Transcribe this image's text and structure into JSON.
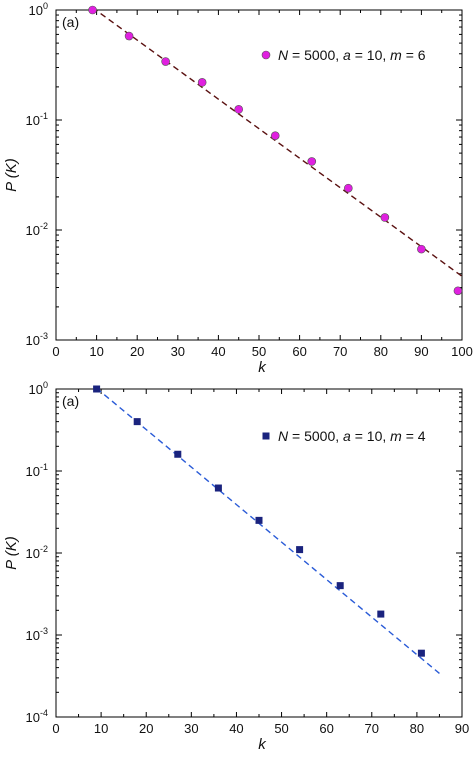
{
  "chart_data": [
    {
      "type": "scatter",
      "panel_label": "(a)",
      "xlabel": "k",
      "ylabel": "P (K)",
      "xlim": [
        0,
        100
      ],
      "ylim": [
        0.001,
        1
      ],
      "yscale": "log",
      "xticks": [
        "0",
        "10",
        "20",
        "30",
        "40",
        "50",
        "60",
        "70",
        "80",
        "90",
        "100"
      ],
      "yticks": [
        {
          "base": "10",
          "exp": "0"
        },
        {
          "base": "10",
          "exp": "-1"
        },
        {
          "base": "10",
          "exp": "-2"
        },
        {
          "base": "10",
          "exp": "-3"
        }
      ],
      "legend": {
        "placement": "top-right",
        "N": "5000",
        "a": "10",
        "m": "6"
      },
      "series": [
        {
          "marker": "circle",
          "color": "#e020e0",
          "x": [
            9,
            18,
            27,
            36,
            45,
            54,
            63,
            72,
            81,
            90,
            99
          ],
          "y": [
            1.0,
            0.58,
            0.34,
            0.22,
            0.125,
            0.072,
            0.042,
            0.024,
            0.013,
            0.0067,
            0.0028
          ]
        }
      ],
      "fit": {
        "style": "dashed",
        "color": "#5a1010",
        "x": [
          9,
          100
        ],
        "y": [
          1.05,
          0.0038
        ]
      }
    },
    {
      "type": "scatter",
      "panel_label": "(a)",
      "xlabel": "k",
      "ylabel": "P (K)",
      "xlim": [
        0,
        90
      ],
      "ylim": [
        0.0001,
        1
      ],
      "yscale": "log",
      "xticks": [
        "0",
        "10",
        "20",
        "30",
        "40",
        "50",
        "60",
        "70",
        "80",
        "90"
      ],
      "yticks": [
        {
          "base": "10",
          "exp": "0"
        },
        {
          "base": "10",
          "exp": "-1"
        },
        {
          "base": "10",
          "exp": "-2"
        },
        {
          "base": "10",
          "exp": "-3"
        },
        {
          "base": "10",
          "exp": "-4"
        }
      ],
      "legend": {
        "placement": "top-right",
        "N": "5000",
        "a": "10",
        "m": "4"
      },
      "series": [
        {
          "marker": "square",
          "color": "#1a237e",
          "x": [
            9,
            18,
            27,
            36,
            45,
            54,
            63,
            72,
            81
          ],
          "y": [
            1.0,
            0.4,
            0.16,
            0.062,
            0.025,
            0.011,
            0.004,
            0.0018,
            0.0006
          ]
        }
      ],
      "fit": {
        "style": "dashed",
        "color": "#2a5bd7",
        "x": [
          9,
          85
        ],
        "y": [
          1.02,
          0.00034
        ]
      }
    }
  ]
}
